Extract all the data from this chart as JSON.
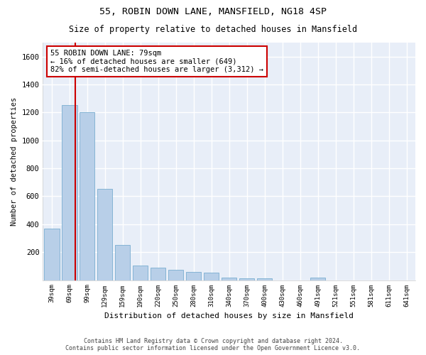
{
  "title1": "55, ROBIN DOWN LANE, MANSFIELD, NG18 4SP",
  "title2": "Size of property relative to detached houses in Mansfield",
  "xlabel": "Distribution of detached houses by size in Mansfield",
  "ylabel": "Number of detached properties",
  "categories": [
    "39sqm",
    "69sqm",
    "99sqm",
    "129sqm",
    "159sqm",
    "190sqm",
    "220sqm",
    "250sqm",
    "280sqm",
    "310sqm",
    "340sqm",
    "370sqm",
    "400sqm",
    "430sqm",
    "460sqm",
    "491sqm",
    "521sqm",
    "551sqm",
    "581sqm",
    "611sqm",
    "641sqm"
  ],
  "values": [
    370,
    1255,
    1200,
    655,
    250,
    105,
    90,
    75,
    58,
    52,
    18,
    12,
    12,
    0,
    0,
    18,
    0,
    0,
    0,
    0,
    0
  ],
  "bar_color": "#b8cfe8",
  "bar_edge_color": "#7aaed0",
  "vline_color": "#cc0000",
  "vline_pos": 1.33,
  "annotation_text": "55 ROBIN DOWN LANE: 79sqm\n← 16% of detached houses are smaller (649)\n82% of semi-detached houses are larger (3,312) →",
  "annotation_box_color": "#ffffff",
  "annotation_box_edge": "#cc0000",
  "ylim": [
    0,
    1700
  ],
  "yticks": [
    0,
    200,
    400,
    600,
    800,
    1000,
    1200,
    1400,
    1600
  ],
  "background_color": "#e8eef8",
  "grid_color": "#ffffff",
  "footer1": "Contains HM Land Registry data © Crown copyright and database right 2024.",
  "footer2": "Contains public sector information licensed under the Open Government Licence v3.0."
}
